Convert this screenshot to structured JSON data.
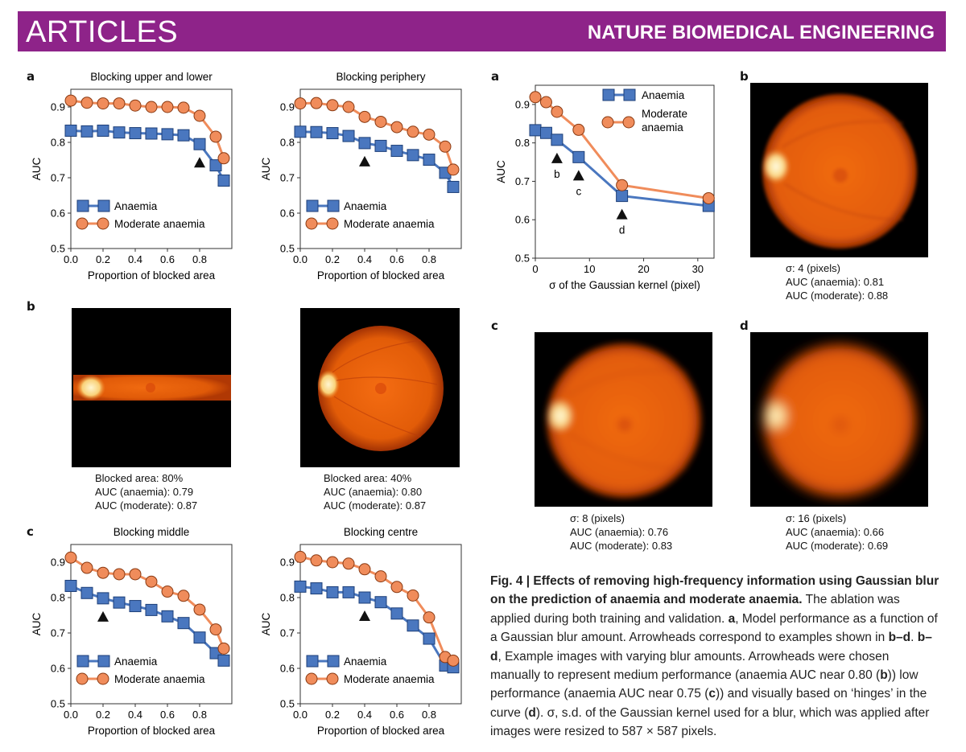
{
  "header": {
    "left": "ARTICLES",
    "right": "NATURE BIOMEDICAL ENGINEERING"
  },
  "left": {
    "panel_a_letter": "a",
    "panel_b_letter": "b",
    "panel_c_letter": "c",
    "image1_caption": [
      "Blocked area: 80%",
      "AUC (anaemia): 0.79",
      "AUC (moderate): 0.87"
    ],
    "image2_caption": [
      "Blocked area: 40%",
      "AUC (anaemia): 0.80",
      "AUC (moderate): 0.87"
    ]
  },
  "right": {
    "panel_a_letter": "a",
    "panel_b_letter": "b",
    "panel_c_letter": "c",
    "panel_d_letter": "d",
    "image_b_caption": [
      "σ: 4 (pixels)",
      "AUC (anaemia): 0.81",
      "AUC (moderate): 0.88"
    ],
    "image_c_caption": [
      "σ: 8 (pixels)",
      "AUC (anaemia): 0.76",
      "AUC (moderate): 0.83"
    ],
    "image_d_caption": [
      "σ: 16 (pixels)",
      "AUC (anaemia): 0.66",
      "AUC (moderate): 0.69"
    ]
  },
  "figure_caption": {
    "title": "Fig. 4 | Effects of removing high-frequency information using Gaussian blur on the prediction of anaemia and moderate anaemia.",
    "body_1": "The ablation was applied during both training and validation.",
    "a_letter": "a",
    "a_text": ", Model performance as a function of a Gaussian blur amount. Arrowheads correspond to examples shown in",
    "bd_letters": "b–d",
    "bd_sep": ".",
    "bd_letters_2": "b–d",
    "bd_text": ", Example images with varying blur amounts. Arrowheads were chosen manually to represent medium performance (anaemia AUC near 0.80 (",
    "b_ref": "b",
    "mid_text": ")) low performance (anaemia AUC near 0.75 (",
    "c_ref": "c",
    "hinge_text": ")) and visually based on ‘hinges’ in the curve (",
    "d_ref": "d",
    "end_text": "). σ, s.d. of the Gaussian kernel used for a blur, which was applied after images were resized to 587 × 587 pixels."
  },
  "colors": {
    "anaemia": "#4a77bf",
    "moderate": "#f08c5b",
    "header": "#8e2389"
  },
  "chart_data": [
    {
      "type": "line",
      "title": "Blocking upper and lower",
      "xlabel": "Proportion of blocked area",
      "ylabel": "AUC",
      "xlim": [
        0,
        1.0
      ],
      "ylim": [
        0.5,
        0.95
      ],
      "xticks": [
        0.0,
        0.2,
        0.4,
        0.6,
        0.8
      ],
      "yticks": [
        0.5,
        0.6,
        0.7,
        0.8,
        0.9
      ],
      "arrow_x": 0.8,
      "legend": [
        "Anaemia",
        "Moderate anaemia"
      ],
      "series": [
        {
          "name": "Anaemia",
          "x": [
            0,
            0.1,
            0.2,
            0.3,
            0.4,
            0.5,
            0.6,
            0.7,
            0.8,
            0.9,
            0.95
          ],
          "values": [
            0.833,
            0.831,
            0.833,
            0.828,
            0.826,
            0.825,
            0.823,
            0.82,
            0.795,
            0.735,
            0.692
          ]
        },
        {
          "name": "Moderate anaemia",
          "x": [
            0,
            0.1,
            0.2,
            0.3,
            0.4,
            0.5,
            0.6,
            0.7,
            0.8,
            0.9,
            0.95
          ],
          "values": [
            0.918,
            0.912,
            0.91,
            0.91,
            0.904,
            0.9,
            0.9,
            0.898,
            0.875,
            0.816,
            0.755
          ]
        }
      ]
    },
    {
      "type": "line",
      "title": "Blocking periphery",
      "xlabel": "Proportion of blocked area",
      "ylabel": "AUC",
      "xlim": [
        0,
        1.0
      ],
      "ylim": [
        0.5,
        0.95
      ],
      "xticks": [
        0.0,
        0.2,
        0.4,
        0.6,
        0.8
      ],
      "yticks": [
        0.5,
        0.6,
        0.7,
        0.8,
        0.9
      ],
      "arrow_x": 0.4,
      "legend": [
        "Anaemia",
        "Moderate anaemia"
      ],
      "series": [
        {
          "name": "Anaemia",
          "x": [
            0,
            0.1,
            0.2,
            0.3,
            0.4,
            0.5,
            0.6,
            0.7,
            0.8,
            0.9,
            0.95
          ],
          "values": [
            0.83,
            0.829,
            0.826,
            0.818,
            0.798,
            0.79,
            0.776,
            0.764,
            0.751,
            0.714,
            0.674
          ]
        },
        {
          "name": "Moderate anaemia",
          "x": [
            0,
            0.1,
            0.2,
            0.3,
            0.4,
            0.5,
            0.6,
            0.7,
            0.8,
            0.9,
            0.95
          ],
          "values": [
            0.91,
            0.911,
            0.905,
            0.9,
            0.872,
            0.858,
            0.843,
            0.83,
            0.822,
            0.788,
            0.723
          ]
        }
      ]
    },
    {
      "type": "line",
      "title": "Blocking middle",
      "xlabel": "Proportion of blocked area",
      "ylabel": "AUC",
      "xlim": [
        0,
        1.0
      ],
      "ylim": [
        0.5,
        0.95
      ],
      "xticks": [
        0.0,
        0.2,
        0.4,
        0.6,
        0.8
      ],
      "yticks": [
        0.5,
        0.6,
        0.7,
        0.8,
        0.9
      ],
      "arrow_x": 0.2,
      "legend": [
        "Anaemia",
        "Moderate anaemia"
      ],
      "series": [
        {
          "name": "Anaemia",
          "x": [
            0,
            0.1,
            0.2,
            0.3,
            0.4,
            0.5,
            0.6,
            0.7,
            0.8,
            0.9,
            0.95
          ],
          "values": [
            0.833,
            0.813,
            0.798,
            0.786,
            0.776,
            0.765,
            0.747,
            0.728,
            0.687,
            0.643,
            0.622
          ]
        },
        {
          "name": "Moderate anaemia",
          "x": [
            0,
            0.1,
            0.2,
            0.3,
            0.4,
            0.5,
            0.6,
            0.7,
            0.8,
            0.9,
            0.95
          ],
          "values": [
            0.913,
            0.884,
            0.87,
            0.866,
            0.866,
            0.845,
            0.817,
            0.805,
            0.766,
            0.71,
            0.656
          ]
        }
      ]
    },
    {
      "type": "line",
      "title": "Blocking centre",
      "xlabel": "Proportion of blocked area",
      "ylabel": "AUC",
      "xlim": [
        0,
        1.0
      ],
      "ylim": [
        0.5,
        0.95
      ],
      "xticks": [
        0.0,
        0.2,
        0.4,
        0.6,
        0.8
      ],
      "yticks": [
        0.5,
        0.6,
        0.7,
        0.8,
        0.9
      ],
      "arrow_x": 0.4,
      "legend": [
        "Anaemia",
        "Moderate anaemia"
      ],
      "series": [
        {
          "name": "Anaemia",
          "x": [
            0,
            0.1,
            0.2,
            0.3,
            0.4,
            0.5,
            0.6,
            0.7,
            0.8,
            0.9,
            0.95
          ],
          "values": [
            0.831,
            0.826,
            0.815,
            0.815,
            0.8,
            0.787,
            0.755,
            0.721,
            0.684,
            0.608,
            0.603
          ]
        },
        {
          "name": "Moderate anaemia",
          "x": [
            0,
            0.1,
            0.2,
            0.3,
            0.4,
            0.5,
            0.6,
            0.7,
            0.8,
            0.9,
            0.95
          ],
          "values": [
            0.915,
            0.905,
            0.9,
            0.896,
            0.88,
            0.86,
            0.83,
            0.806,
            0.744,
            0.632,
            0.622
          ]
        }
      ]
    },
    {
      "type": "line",
      "title": "",
      "xlabel": "σ of the Gaussian kernel (pixel)",
      "ylabel": "AUC",
      "xlim": [
        0,
        33
      ],
      "ylim": [
        0.5,
        0.95
      ],
      "xticks": [
        0,
        10,
        20,
        30
      ],
      "yticks": [
        0.5,
        0.6,
        0.7,
        0.8,
        0.9
      ],
      "arrows": [
        {
          "x": 4,
          "label": "b"
        },
        {
          "x": 8,
          "label": "c"
        },
        {
          "x": 16,
          "label": "d"
        }
      ],
      "legend": [
        "Anaemia",
        "Moderate anaemia"
      ],
      "series": [
        {
          "name": "Anaemia",
          "x": [
            0,
            2,
            4,
            8,
            16,
            32
          ],
          "values": [
            0.833,
            0.826,
            0.808,
            0.763,
            0.662,
            0.636
          ]
        },
        {
          "name": "Moderate anaemia",
          "x": [
            0,
            2,
            4,
            8,
            16,
            32
          ],
          "values": [
            0.919,
            0.906,
            0.881,
            0.834,
            0.69,
            0.656
          ]
        }
      ]
    }
  ]
}
